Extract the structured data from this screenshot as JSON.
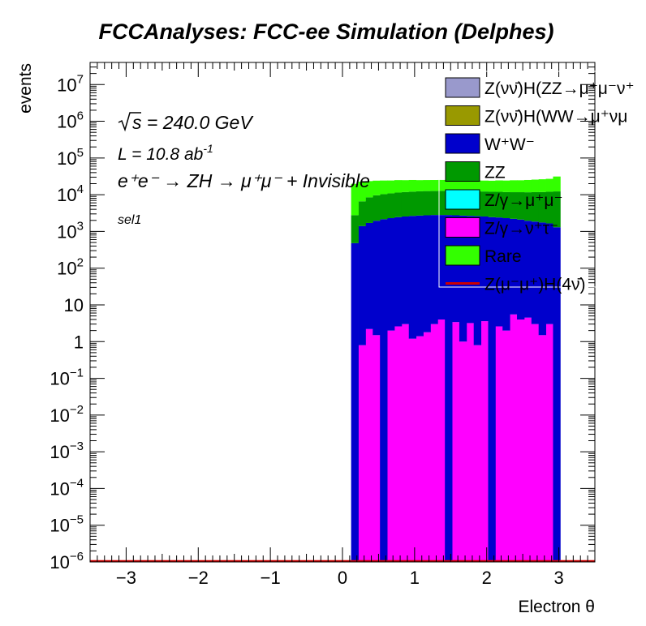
{
  "chart_data": {
    "type": "bar",
    "subtype": "stacked histogram",
    "title": "FCCAnalyses: FCC-ee Simulation (Delphes)",
    "xlabel": "Electron θ",
    "ylabel": "events",
    "xlim": [
      -3.5,
      3.5
    ],
    "ylim": [
      1e-06,
      40000000.0
    ],
    "log_y": true,
    "x_ticks": [
      -3,
      -2,
      -1,
      0,
      1,
      2,
      3
    ],
    "x_tick_labels": [
      "−3",
      "−2",
      "−1",
      "0",
      "1",
      "2",
      "3"
    ],
    "y_ticks": [
      {
        "value": 1e-06,
        "base": "10",
        "exp": "−6"
      },
      {
        "value": 1e-05,
        "base": "10",
        "exp": "−5"
      },
      {
        "value": 0.0001,
        "base": "10",
        "exp": "−4"
      },
      {
        "value": 0.001,
        "base": "10",
        "exp": "−3"
      },
      {
        "value": 0.01,
        "base": "10",
        "exp": "−2"
      },
      {
        "value": 0.1,
        "base": "10",
        "exp": "−1"
      },
      {
        "value": 1,
        "base": "1",
        "exp": ""
      },
      {
        "value": 10,
        "base": "10",
        "exp": ""
      },
      {
        "value": 100,
        "base": "10",
        "exp": "2"
      },
      {
        "value": 1000,
        "base": "10",
        "exp": "3"
      },
      {
        "value": 10000,
        "base": "10",
        "exp": "4"
      },
      {
        "value": 100000,
        "base": "10",
        "exp": "5"
      },
      {
        "value": 1000000,
        "base": "10",
        "exp": "6"
      },
      {
        "value": 10000000,
        "base": "10",
        "exp": "7"
      }
    ],
    "bin_edges": [
      0.12,
      0.22,
      0.32,
      0.42,
      0.52,
      0.62,
      0.72,
      0.82,
      0.92,
      1.02,
      1.12,
      1.22,
      1.32,
      1.42,
      1.52,
      1.62,
      1.72,
      1.82,
      1.92,
      2.02,
      2.12,
      2.22,
      2.32,
      2.42,
      2.52,
      2.62,
      2.72,
      2.82,
      2.92,
      3.02
    ],
    "series": [
      {
        "name": "Z/γ→ν⁺τ⁻",
        "color": "#ff00ff",
        "values": [
          0,
          0.8,
          2.2,
          1.5,
          0,
          2.0,
          2.6,
          3.0,
          1.2,
          1.4,
          1.8,
          3.0,
          4.0,
          0,
          3.4,
          1.0,
          3.2,
          0.8,
          3.6,
          0,
          2.6,
          2.0,
          5.5,
          4.0,
          4.5,
          3.0,
          1.5,
          3.0,
          0
        ]
      },
      {
        "name": "W⁺W⁻",
        "color": "#0000cc",
        "values": [
          480,
          1400,
          1700,
          1950,
          2150,
          2300,
          2450,
          2550,
          2650,
          2700,
          2750,
          2800,
          2800,
          2800,
          2750,
          2700,
          2650,
          2600,
          2550,
          2450,
          2400,
          2300,
          2200,
          2100,
          1950,
          1850,
          1750,
          1650,
          1300
        ]
      },
      {
        "name": "ZZ",
        "color": "#009900",
        "values": [
          2300,
          5200,
          6800,
          7700,
          8200,
          8600,
          9000,
          9300,
          9500,
          9700,
          9800,
          9800,
          9900,
          9900,
          9900,
          9800,
          9800,
          9700,
          9700,
          9600,
          9600,
          9500,
          9500,
          9600,
          9700,
          9900,
          10100,
          10400,
          11000
        ]
      },
      {
        "name": "Rare",
        "color": "#33ff00",
        "values": [
          17000,
          16000,
          15000,
          14500,
          14000,
          13500,
          13500,
          13000,
          13000,
          12500,
          12500,
          12500,
          12500,
          12000,
          12000,
          12000,
          12000,
          12000,
          12000,
          12000,
          12500,
          12500,
          13000,
          13000,
          13500,
          14000,
          14500,
          15000,
          19000
        ]
      }
    ],
    "signal_line": {
      "name": "Z(μ⁻μ⁺)H(4ν̄)",
      "color": "#cc0000",
      "value": 1e-06
    },
    "legend": [
      {
        "label": "Z(νν̄)H(ZZ→μ⁺μ⁻ν⁺",
        "color": "#9999cc",
        "kind": "box"
      },
      {
        "label": "Z(νν̄)H(WW→μ⁺νμ",
        "color": "#999900",
        "kind": "box"
      },
      {
        "label": "W⁺W⁻",
        "color": "#0000cc",
        "kind": "box"
      },
      {
        "label": "ZZ",
        "color": "#009900",
        "kind": "box"
      },
      {
        "label": "Z/γ→μ⁺μ⁻",
        "color": "#00ffff",
        "kind": "box"
      },
      {
        "label": "Z/γ→ν⁺τ⁻",
        "color": "#ff00ff",
        "kind": "box"
      },
      {
        "label": "Rare",
        "color": "#33ff00",
        "kind": "box"
      },
      {
        "label": "Z(μ⁻μ⁺)H(4ν̄)",
        "color": "#cc0000",
        "kind": "line"
      }
    ],
    "legend_position": "top-right",
    "annotations": {
      "sqrt_s": "s = 240.0 GeV",
      "lumi_text": "L = 10.8 ab",
      "lumi_exp": "-1",
      "process": "e⁺e⁻ → ZH → μ⁺μ⁻ + Invisible",
      "selection": "sel1"
    }
  }
}
